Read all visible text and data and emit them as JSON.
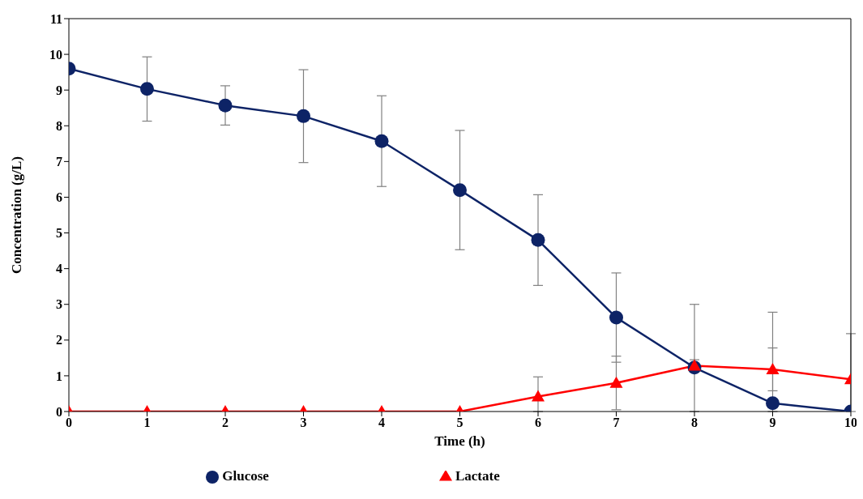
{
  "chart_data": {
    "type": "line",
    "xlabel": "Time (h)",
    "ylabel": "Concentration  (g/L)",
    "x": [
      0,
      1,
      2,
      3,
      4,
      5,
      6,
      7,
      8,
      9,
      10
    ],
    "series": [
      {
        "name": "Glucose",
        "color": "#0d2366",
        "marker": "circle",
        "values": [
          9.6,
          9.03,
          8.57,
          8.27,
          7.57,
          6.2,
          4.8,
          2.63,
          1.23,
          0.23,
          0.0
        ],
        "errors": [
          null,
          0.9,
          0.55,
          1.3,
          1.27,
          1.67,
          1.27,
          1.25,
          [
            0,
            3.0
          ],
          [
            0,
            2.78
          ],
          [
            0,
            2.18
          ]
        ]
      },
      {
        "name": "Lactate",
        "color": "#ff0000",
        "marker": "triangle",
        "values": [
          0,
          0,
          0,
          0,
          0,
          0,
          0.42,
          0.8,
          1.28,
          1.18,
          0.9
        ],
        "errors": [
          null,
          null,
          null,
          null,
          null,
          null,
          [
            0,
            0.97
          ],
          0.75,
          0.17,
          0.6,
          null
        ]
      }
    ],
    "xlim": [
      0,
      10
    ],
    "xticks": [
      0,
      1,
      2,
      3,
      4,
      5,
      6,
      7,
      8,
      9,
      10
    ],
    "ylim": [
      0,
      11
    ],
    "yticks": [
      0,
      1,
      2,
      3,
      4,
      5,
      6,
      7,
      8,
      9,
      10,
      11
    ],
    "grid": false,
    "legend": "bottom"
  }
}
